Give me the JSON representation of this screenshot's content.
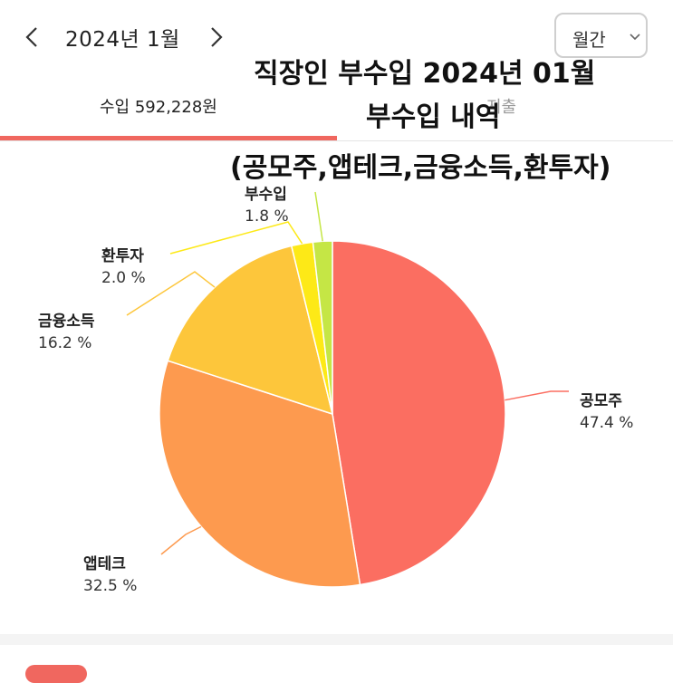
{
  "header": {
    "month_label": "2024년 1월",
    "period_select": "월간",
    "prev_icon": "chevron-left-icon",
    "next_icon": "chevron-right-icon",
    "dropdown_icon": "chevron-down-icon"
  },
  "title_overlay": {
    "line1": "직장인 부수입 2024년 01월",
    "line2": "부수입 내역",
    "line3": "(공모주,앱테크,금융소득,환투자)"
  },
  "tabs": {
    "income": "수입  592,228원",
    "expense": "지출"
  },
  "colors": {
    "accent": "#f0675f"
  },
  "chart_data": {
    "type": "pie",
    "slices": [
      {
        "label": "공모주",
        "percent_text": "47.4 %",
        "value": 47.4,
        "color": "#fb6e61"
      },
      {
        "label": "앱테크",
        "percent_text": "32.5 %",
        "value": 32.5,
        "color": "#fd9a4f"
      },
      {
        "label": "금융소득",
        "percent_text": "16.2 %",
        "value": 16.2,
        "color": "#fdc63b"
      },
      {
        "label": "환투자",
        "percent_text": "2.0 %",
        "value": 2.0,
        "color": "#fde917"
      },
      {
        "label": "부수입",
        "percent_text": "1.8 %",
        "value": 1.8,
        "color": "#c5e645"
      }
    ]
  }
}
